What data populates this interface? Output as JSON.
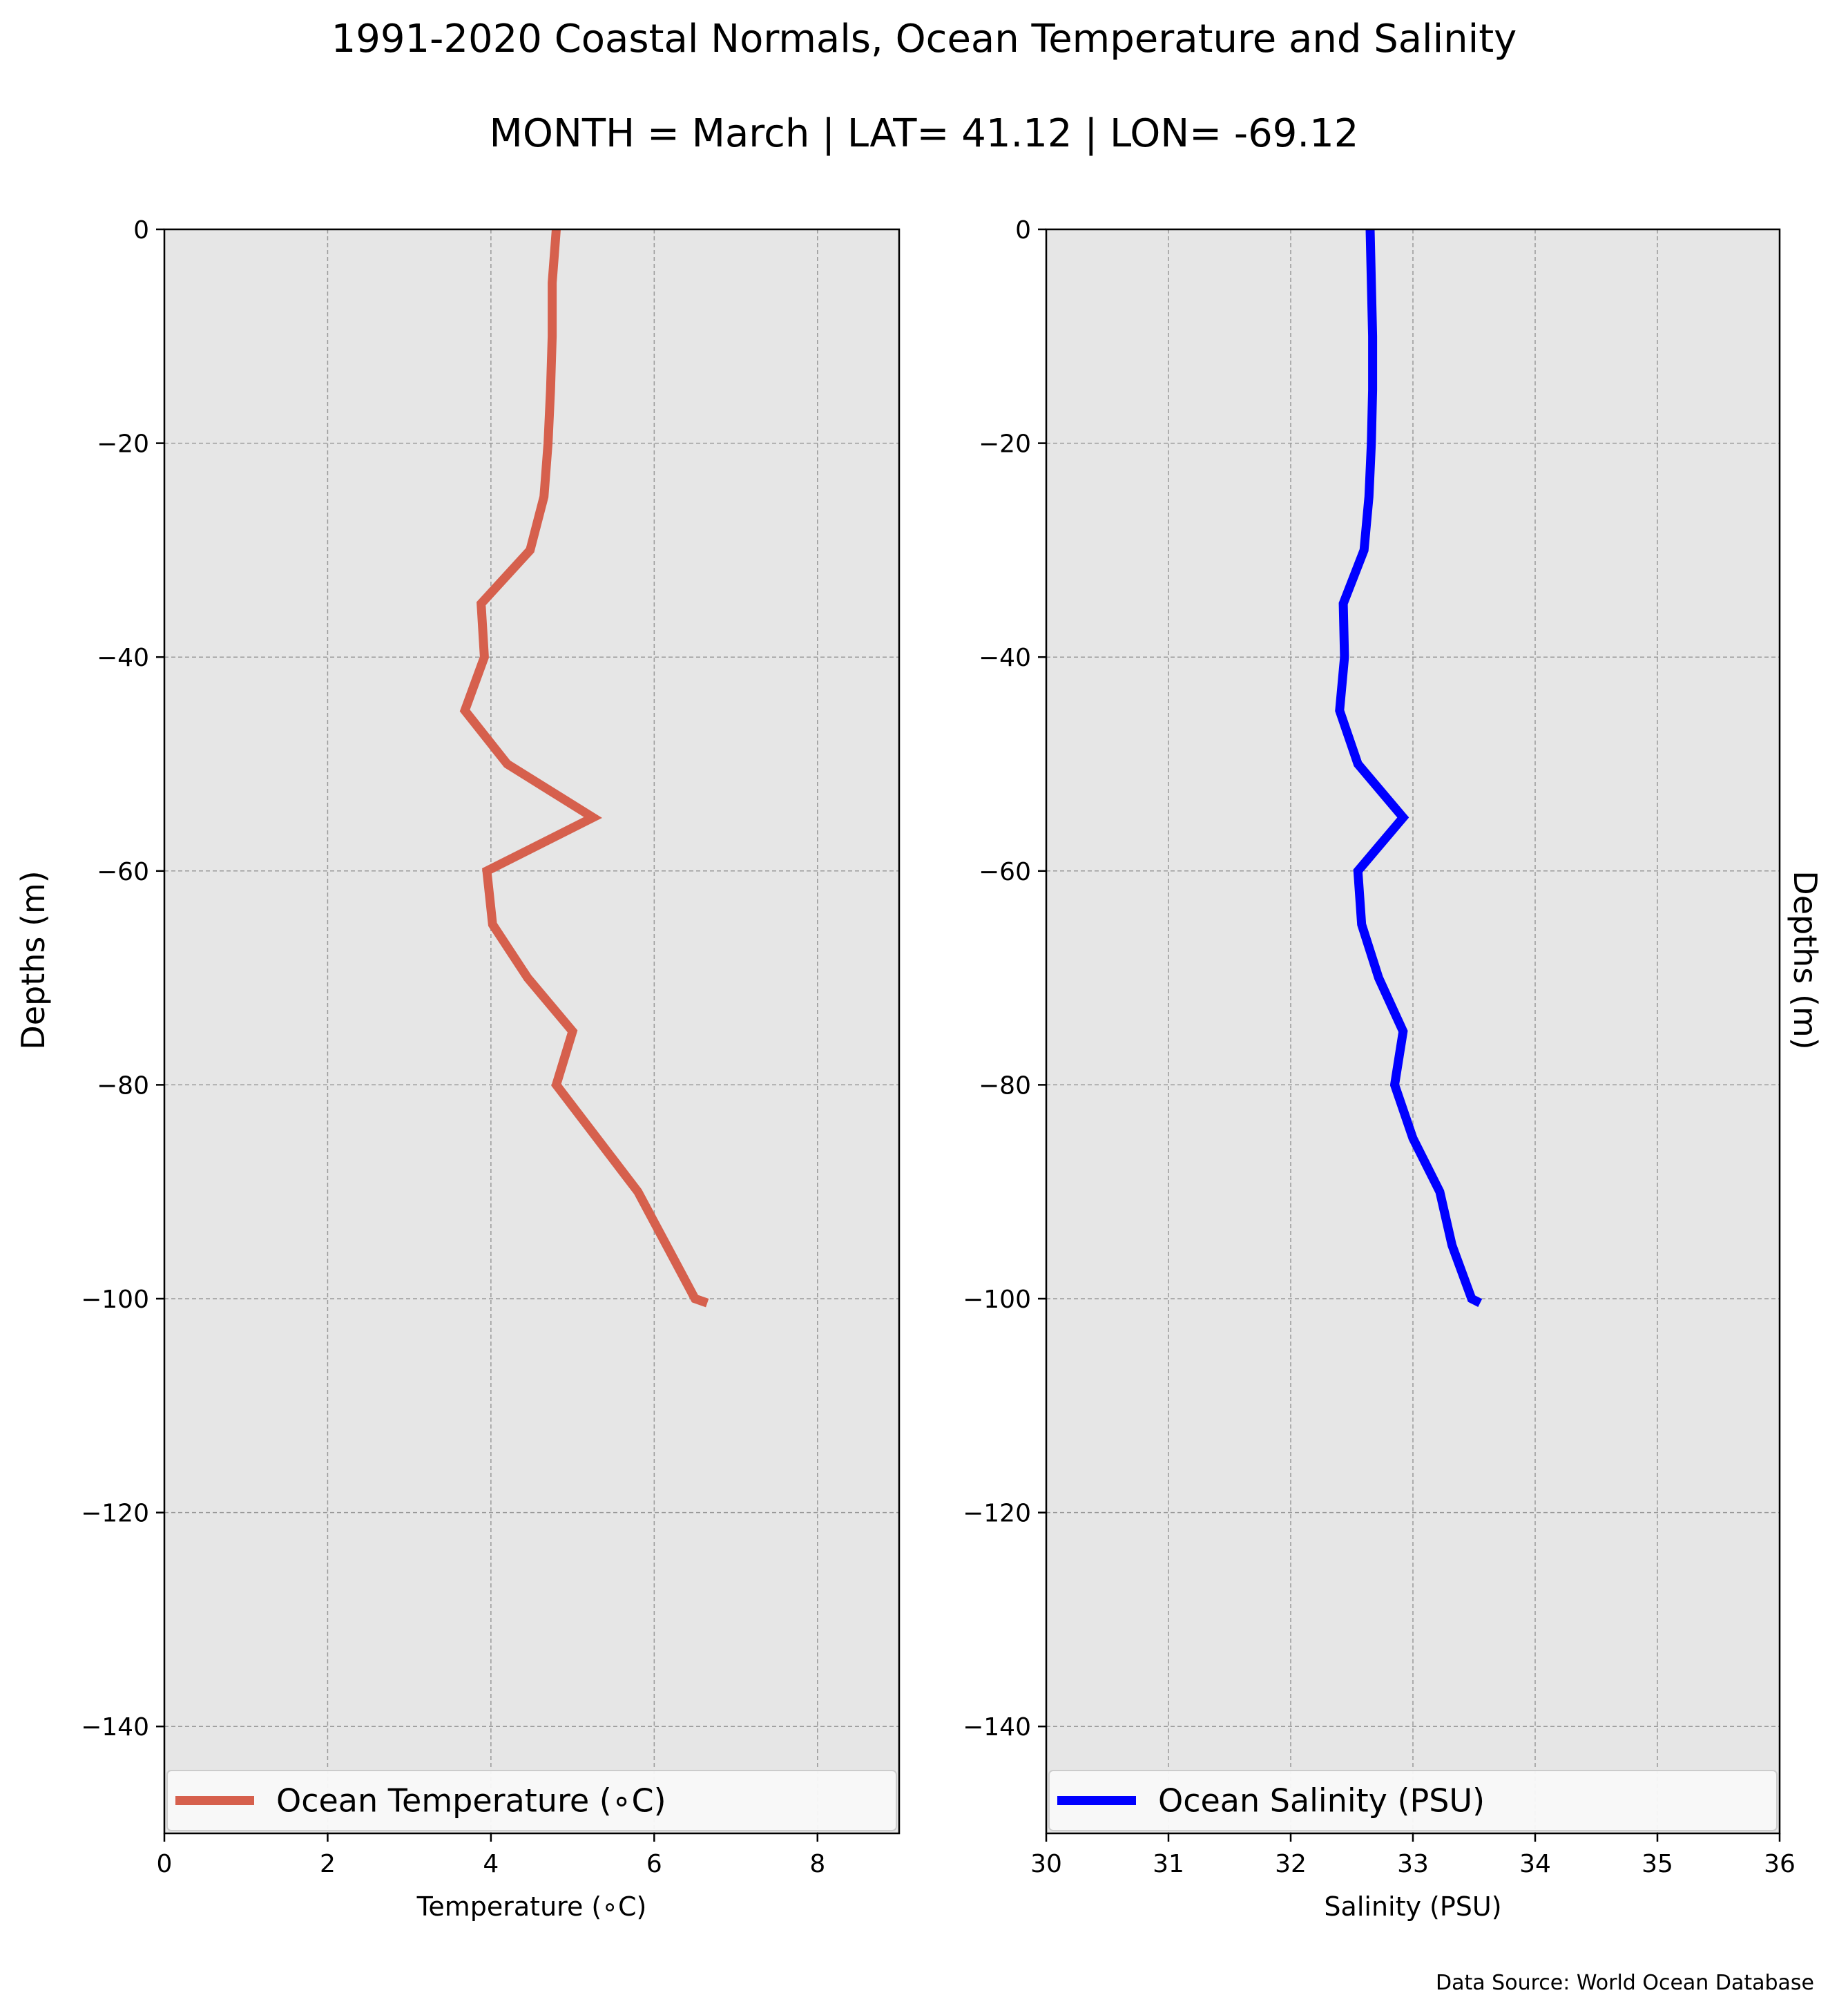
{
  "figure": {
    "title_line1": "1991-2020 Coastal Normals, Ocean Temperature and Salinity",
    "title_line2": "MONTH = March | LAT= 41.12 | LON= -69.12",
    "source_note": "Data Source: World Ocean Database",
    "right_ylabel": "Depths (m)"
  },
  "chart_data": [
    {
      "type": "line",
      "panel": "left",
      "title": "",
      "xlabel": "Temperature (∘C)",
      "ylabel": "Depths (m)",
      "xlim": [
        0,
        9
      ],
      "ylim": [
        -150,
        0
      ],
      "xticks": [
        0,
        2,
        4,
        6,
        8
      ],
      "yticks": [
        0,
        -20,
        -40,
        -60,
        -80,
        -100,
        -120,
        -140
      ],
      "grid": true,
      "legend_position": "bottom",
      "background": "#e6e6e6",
      "series": [
        {
          "name": "Ocean Temperature (∘C)",
          "color": "#d6604d",
          "x": [
            4.8,
            4.75,
            4.75,
            4.73,
            4.7,
            4.65,
            4.48,
            3.88,
            3.92,
            3.68,
            4.2,
            5.25,
            3.95,
            4.02,
            4.45,
            5.0,
            4.8,
            5.3,
            5.8,
            6.15,
            6.5,
            6.65
          ],
          "y": [
            0,
            -5,
            -10,
            -15,
            -20,
            -25,
            -30,
            -35,
            -40,
            -45,
            -50,
            -55,
            -60,
            -65,
            -70,
            -75,
            -80,
            -85,
            -90,
            -95,
            -100,
            -100.4
          ]
        }
      ]
    },
    {
      "type": "line",
      "panel": "right",
      "title": "",
      "xlabel": "Salinity (PSU)",
      "ylabel": "Depths (m)",
      "xlim": [
        30,
        36
      ],
      "ylim": [
        -150,
        0
      ],
      "xticks": [
        30,
        31,
        32,
        33,
        34,
        35,
        36
      ],
      "yticks": [
        0,
        -20,
        -40,
        -60,
        -80,
        -100,
        -120,
        -140
      ],
      "grid": true,
      "legend_position": "bottom",
      "background": "#e6e6e6",
      "series": [
        {
          "name": "Ocean Salinity (PSU)",
          "color": "#0000ff",
          "x": [
            32.65,
            32.66,
            32.67,
            32.67,
            32.66,
            32.64,
            32.6,
            32.43,
            32.44,
            32.4,
            32.55,
            32.92,
            32.55,
            32.58,
            32.72,
            32.92,
            32.85,
            33.0,
            33.22,
            33.32,
            33.48,
            33.55
          ],
          "y": [
            0,
            -5,
            -10,
            -15,
            -20,
            -25,
            -30,
            -35,
            -40,
            -45,
            -50,
            -55,
            -60,
            -65,
            -70,
            -75,
            -80,
            -85,
            -90,
            -95,
            -100,
            -100.4
          ]
        }
      ]
    }
  ]
}
